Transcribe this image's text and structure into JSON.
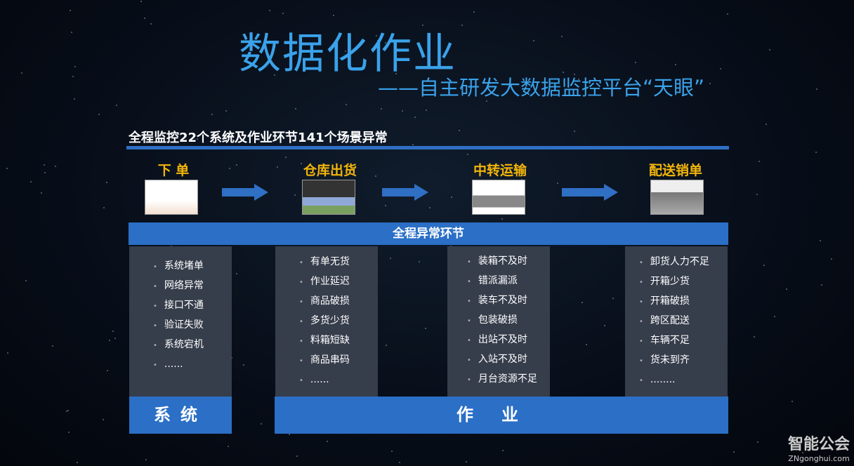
{
  "title": "数据化作业",
  "subtitle": "——自主研发大数据监控平台“天眼”",
  "heading": "全程监控22个系统及作业环节141个场景异常",
  "steps": [
    {
      "label": "下 单"
    },
    {
      "label": "仓库出货"
    },
    {
      "label": "中转运输"
    },
    {
      "label": "配送销单"
    }
  ],
  "bar_label": "全程异常环节",
  "columns": [
    {
      "items": [
        "系统堵单",
        "网络异常",
        "接口不通",
        "验证失败",
        "系统宕机",
        "......"
      ]
    },
    {
      "items": [
        "有单无货",
        "作业延迟",
        "商品破损",
        "多货少货",
        "料箱短缺",
        "商品串码",
        "......"
      ]
    },
    {
      "items": [
        "装箱不及时",
        "错派漏派",
        "装车不及时",
        "包装破损",
        "出站不及时",
        "入站不及时",
        "月台资源不足"
      ]
    },
    {
      "items": [
        "卸货人力不足",
        "开箱少货",
        "开箱破损",
        "跨区配送",
        "车辆不足",
        "货未到齐",
        "........"
      ]
    }
  ],
  "footers": {
    "system": "系统",
    "operation": "作业"
  },
  "watermark": {
    "logo": "智能公会",
    "url": "ZNgonghui.com"
  },
  "colors": {
    "title": "#3aa2ea",
    "step": "#f2b50a",
    "bar": "#2b6fc6",
    "panel": "#363d4b"
  }
}
